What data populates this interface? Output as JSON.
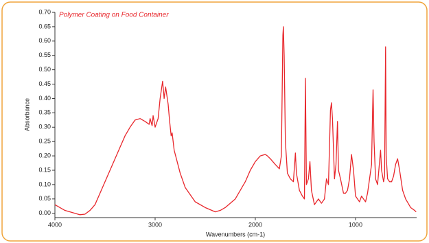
{
  "chart_data": {
    "type": "line",
    "title": "Polymer Coating on Food Container",
    "x_label": "Wavenumbers (cm-1)",
    "y_label": "Absorbance",
    "color": "#e8272c",
    "xlim": [
      4000,
      390
    ],
    "ylim": [
      -0.015,
      0.7
    ],
    "xticks": [
      4000,
      3000,
      2000,
      1000
    ],
    "yticks": [
      {
        "value": 0,
        "label": "0.00"
      },
      {
        "value": 0.05,
        "label": "0.05"
      },
      {
        "value": 0.1,
        "label": "0.10"
      },
      {
        "value": 0.15,
        "label": "0.15"
      },
      {
        "value": 0.2,
        "label": "0.20"
      },
      {
        "value": 0.25,
        "label": "0.25"
      },
      {
        "value": 0.3,
        "label": "0.30"
      },
      {
        "value": 0.35,
        "label": "0.35"
      },
      {
        "value": 0.4,
        "label": "0.40"
      },
      {
        "value": 0.45,
        "label": "0.45"
      },
      {
        "value": 0.5,
        "label": "0.50"
      },
      {
        "value": 0.55,
        "label": "0.55"
      },
      {
        "value": 0.6,
        "label": "0.60"
      },
      {
        "value": 0.65,
        "label": "0.65"
      },
      {
        "value": 0.7,
        "label": "0.70"
      }
    ],
    "x": [
      4000,
      3900,
      3800,
      3750,
      3700,
      3650,
      3600,
      3550,
      3500,
      3450,
      3400,
      3350,
      3300,
      3250,
      3200,
      3150,
      3100,
      3060,
      3050,
      3030,
      3020,
      3000,
      2970,
      2950,
      2925,
      2910,
      2895,
      2870,
      2855,
      2840,
      2830,
      2810,
      2750,
      2700,
      2600,
      2500,
      2400,
      2350,
      2300,
      2200,
      2100,
      2050,
      2000,
      1950,
      1900,
      1880,
      1850,
      1800,
      1760,
      1740,
      1725,
      1720,
      1712,
      1700,
      1680,
      1650,
      1620,
      1600,
      1590,
      1560,
      1530,
      1510,
      1500,
      1490,
      1470,
      1455,
      1440,
      1410,
      1390,
      1370,
      1340,
      1310,
      1290,
      1270,
      1250,
      1240,
      1230,
      1210,
      1195,
      1180,
      1170,
      1150,
      1120,
      1100,
      1080,
      1060,
      1040,
      1020,
      1000,
      980,
      960,
      940,
      920,
      900,
      880,
      860,
      840,
      830,
      825,
      815,
      800,
      780,
      760,
      750,
      740,
      720,
      710,
      700,
      694,
      680,
      660,
      640,
      620,
      600,
      580,
      560,
      530,
      500,
      450,
      410,
      395
    ],
    "values": [
      0.03,
      0.01,
      0.0,
      -0.005,
      -0.003,
      0.01,
      0.03,
      0.07,
      0.11,
      0.15,
      0.19,
      0.23,
      0.27,
      0.3,
      0.325,
      0.33,
      0.32,
      0.31,
      0.33,
      0.305,
      0.34,
      0.3,
      0.33,
      0.4,
      0.46,
      0.4,
      0.44,
      0.38,
      0.32,
      0.27,
      0.28,
      0.22,
      0.14,
      0.09,
      0.04,
      0.02,
      0.005,
      0.01,
      0.02,
      0.05,
      0.11,
      0.15,
      0.18,
      0.2,
      0.205,
      0.2,
      0.19,
      0.17,
      0.155,
      0.2,
      0.62,
      0.65,
      0.55,
      0.25,
      0.14,
      0.12,
      0.11,
      0.21,
      0.14,
      0.08,
      0.06,
      0.05,
      0.47,
      0.1,
      0.12,
      0.18,
      0.08,
      0.03,
      0.04,
      0.05,
      0.035,
      0.05,
      0.12,
      0.1,
      0.36,
      0.385,
      0.33,
      0.12,
      0.17,
      0.32,
      0.15,
      0.12,
      0.07,
      0.07,
      0.08,
      0.12,
      0.205,
      0.15,
      0.06,
      0.05,
      0.04,
      0.06,
      0.05,
      0.04,
      0.07,
      0.12,
      0.17,
      0.35,
      0.43,
      0.25,
      0.12,
      0.1,
      0.18,
      0.22,
      0.15,
      0.11,
      0.13,
      0.58,
      0.2,
      0.12,
      0.11,
      0.11,
      0.13,
      0.17,
      0.19,
      0.15,
      0.08,
      0.05,
      0.02,
      0.01,
      0.005
    ]
  }
}
